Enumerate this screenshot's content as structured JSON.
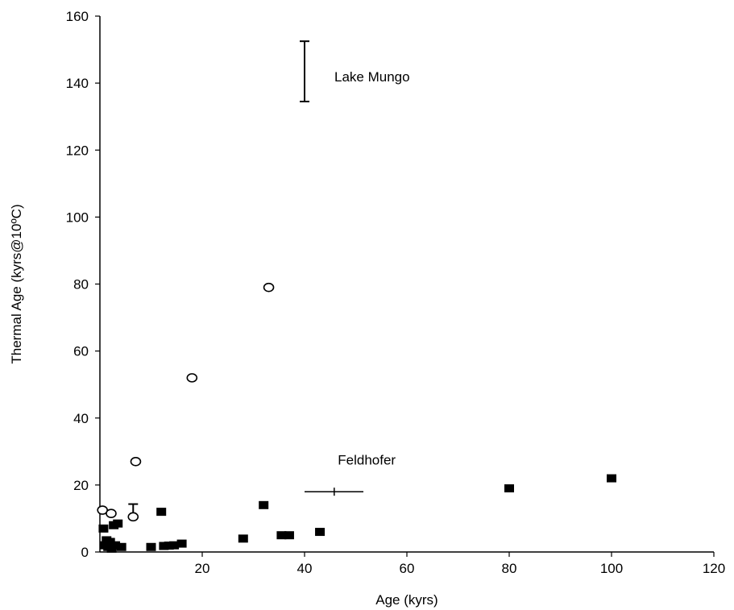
{
  "chart_data": {
    "type": "scatter",
    "xlabel": "Age (kyrs)",
    "ylabel": "Thermal Age (kyrs@10ºC)",
    "xlim": [
      0,
      120
    ],
    "ylim": [
      0,
      160
    ],
    "xticks": [
      "20",
      "40",
      "60",
      "80",
      "100",
      "120"
    ],
    "yticks": [
      "0",
      "20",
      "40",
      "60",
      "80",
      "100",
      "120",
      "140",
      "160"
    ],
    "grid": false,
    "legend": "none",
    "series": [
      {
        "marker": "filled-square",
        "color": "#000000",
        "points": [
          {
            "x": 0.7,
            "y": 7.0
          },
          {
            "x": 1.0,
            "y": 2.0
          },
          {
            "x": 1.3,
            "y": 3.5
          },
          {
            "x": 1.6,
            "y": 1.5
          },
          {
            "x": 2.0,
            "y": 3.0
          },
          {
            "x": 2.3,
            "y": 1.0
          },
          {
            "x": 2.7,
            "y": 8.0
          },
          {
            "x": 3.0,
            "y": 2.0
          },
          {
            "x": 3.5,
            "y": 8.5
          },
          {
            "x": 4.2,
            "y": 1.5
          },
          {
            "x": 10.0,
            "y": 1.5
          },
          {
            "x": 12.0,
            "y": 12.0
          },
          {
            "x": 12.5,
            "y": 1.8
          },
          {
            "x": 13.5,
            "y": 1.9
          },
          {
            "x": 14.5,
            "y": 2.0
          },
          {
            "x": 16.0,
            "y": 2.5
          },
          {
            "x": 28.0,
            "y": 4.0
          },
          {
            "x": 32.0,
            "y": 14.0
          },
          {
            "x": 35.5,
            "y": 5.0
          },
          {
            "x": 37.0,
            "y": 5.0
          },
          {
            "x": 43.0,
            "y": 6.0
          },
          {
            "x": 80.0,
            "y": 19.0
          },
          {
            "x": 100.0,
            "y": 22.0
          }
        ]
      },
      {
        "marker": "open-circle",
        "color": "#000000",
        "points": [
          {
            "x": 0.5,
            "y": 12.5
          },
          {
            "x": 2.2,
            "y": 11.5
          },
          {
            "x": 6.5,
            "y": 10.5
          },
          {
            "x": 7.0,
            "y": 27.0
          },
          {
            "x": 18.0,
            "y": 52.0
          },
          {
            "x": 33.0,
            "y": 79.0
          }
        ]
      }
    ],
    "error_bars": [
      {
        "type": "vertical",
        "x": 40,
        "y_low": 134.5,
        "y_high": 152.5,
        "annotation": "Lake Mungo"
      },
      {
        "type": "horizontal",
        "y": 18,
        "x_low": 40,
        "x_high": 51.5,
        "x_mid": 45.8,
        "annotation": "Feldhofer"
      },
      {
        "type": "vertical",
        "x": 6.5,
        "y_low": 10.5,
        "y_high": 14.3,
        "annotation": ""
      }
    ],
    "annotations": [
      {
        "text": "Lake Mungo"
      },
      {
        "text": "Feldhofer"
      }
    ]
  }
}
